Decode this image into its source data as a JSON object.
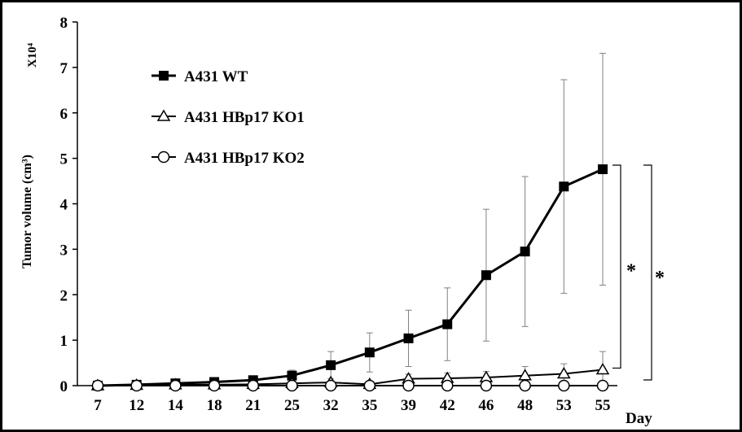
{
  "chart_data": {
    "type": "line",
    "ylabel": "Tumor volume (cm³)",
    "y_multiplier": "X10⁴",
    "xlabel": "Day",
    "categories": [
      "7",
      "12",
      "14",
      "18",
      "21",
      "25",
      "32",
      "35",
      "39",
      "42",
      "46",
      "48",
      "53",
      "55"
    ],
    "ylim": [
      0,
      8
    ],
    "yticks": [
      "0",
      "1",
      "2",
      "3",
      "4",
      "5",
      "6",
      "7",
      "8"
    ],
    "grid": false,
    "legend_position": "top-left",
    "series": [
      {
        "name": "A431 WT",
        "marker": "filled-square",
        "values": [
          0.0,
          0.02,
          0.05,
          0.08,
          0.12,
          0.22,
          0.45,
          0.73,
          1.04,
          1.35,
          2.43,
          2.95,
          4.38,
          4.76
        ],
        "error": [
          0.0,
          0.02,
          0.03,
          0.04,
          0.06,
          0.12,
          0.3,
          0.43,
          0.62,
          0.8,
          1.45,
          1.65,
          2.35,
          2.55
        ]
      },
      {
        "name": "A431 HBp17 KO1",
        "marker": "open-triangle",
        "values": [
          0.0,
          0.01,
          0.02,
          0.02,
          0.03,
          0.05,
          0.07,
          0.03,
          0.15,
          0.16,
          0.18,
          0.22,
          0.26,
          0.35
        ],
        "error": [
          0.0,
          0.0,
          0.01,
          0.01,
          0.01,
          0.02,
          0.03,
          0.02,
          0.1,
          0.12,
          0.13,
          0.2,
          0.22,
          0.4
        ]
      },
      {
        "name": "A431 HBp17 KO2",
        "marker": "open-circle",
        "values": [
          0.0,
          0.0,
          0.0,
          0.0,
          0.0,
          0.0,
          0.0,
          0.0,
          0.0,
          0.0,
          0.0,
          0.0,
          0.0,
          0.0
        ],
        "error": [
          0,
          0,
          0,
          0,
          0,
          0,
          0,
          0,
          0,
          0,
          0,
          0,
          0,
          0
        ]
      }
    ],
    "annotations": [
      "*",
      "*"
    ]
  }
}
